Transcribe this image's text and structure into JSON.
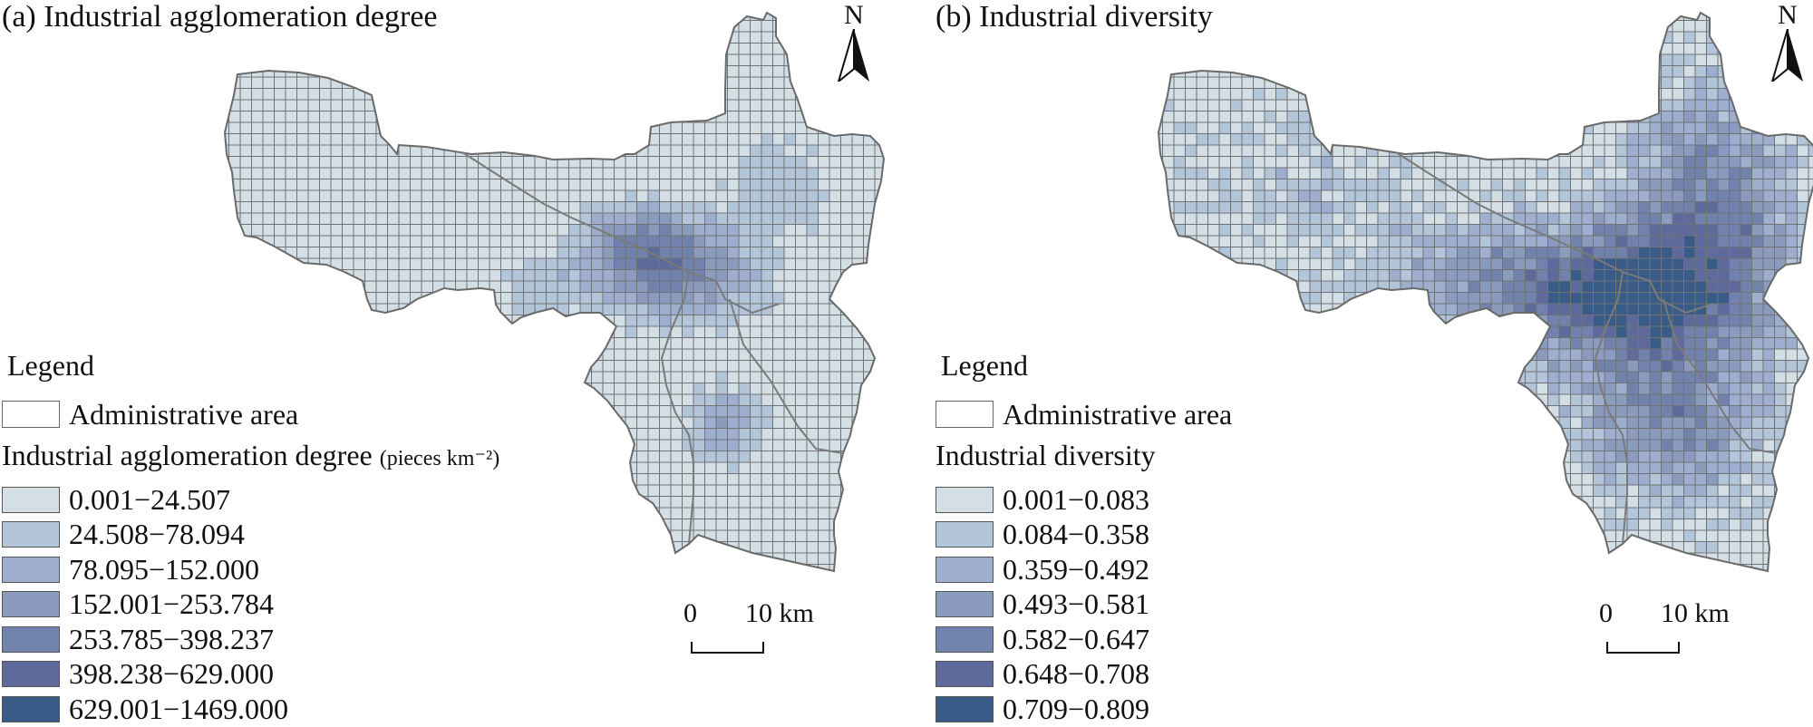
{
  "panels": [
    {
      "title": "(a) Industrial agglomeration degree",
      "north": "N",
      "legend_title": "Legend",
      "admin_label": "Administrative area",
      "variable_title": "Industrial agglomeration degree",
      "variable_unit": "(pieces km⁻²)",
      "classes": [
        "0.001−24.507",
        "24.508−78.094",
        "78.095−152.000",
        "152.001−253.784",
        "253.785−398.237",
        "398.238−629.000",
        "629.001−1469.000"
      ],
      "colors": [
        "#d3dfe5",
        "#b3c5d9",
        "#9eaece",
        "#8a9bbe",
        "#7183ad",
        "#5d6a9b",
        "#395b87"
      ],
      "scale_zero": "0",
      "scale_dist": "10 km"
    },
    {
      "title": "(b) Industrial diversity",
      "north": "N",
      "legend_title": "Legend",
      "admin_label": "Administrative area",
      "variable_title": "Industrial diversity",
      "variable_unit": "",
      "classes": [
        "0.001−0.083",
        "0.084−0.358",
        "0.359−0.492",
        "0.493−0.581",
        "0.582−0.647",
        "0.648−0.708",
        "0.709−0.809"
      ],
      "colors": [
        "#d3dfe5",
        "#b3c5d9",
        "#9eaece",
        "#8a9bbe",
        "#7183ad",
        "#5d6a9b",
        "#395b87"
      ],
      "scale_zero": "0",
      "scale_dist": "10 km"
    }
  ]
}
